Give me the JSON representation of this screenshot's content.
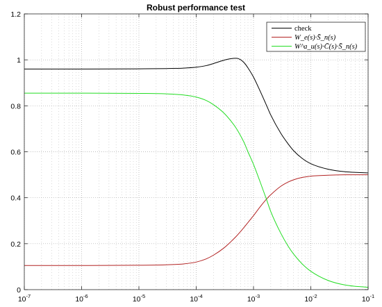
{
  "chart_data": {
    "type": "line",
    "title": "Robust performance test",
    "xscale": "log",
    "xlim": [
      1e-07,
      0.1
    ],
    "ylim": [
      0,
      1.2
    ],
    "grid": true,
    "legend_position": "top-right",
    "x_ticks": [
      {
        "base": "10",
        "exp": "-7",
        "value": 1e-07
      },
      {
        "base": "10",
        "exp": "-6",
        "value": 1e-06
      },
      {
        "base": "10",
        "exp": "-5",
        "value": 1e-05
      },
      {
        "base": "10",
        "exp": "-4",
        "value": 0.0001
      },
      {
        "base": "10",
        "exp": "-3",
        "value": 0.001
      },
      {
        "base": "10",
        "exp": "-2",
        "value": 0.01
      },
      {
        "base": "10",
        "exp": "-1",
        "value": 0.1
      }
    ],
    "y_ticks": [
      {
        "label": "0",
        "value": 0
      },
      {
        "label": "0.2",
        "value": 0.2
      },
      {
        "label": "0.4",
        "value": 0.4
      },
      {
        "label": "0.6",
        "value": 0.6
      },
      {
        "label": "0.8",
        "value": 0.8
      },
      {
        "label": "1",
        "value": 1.0
      },
      {
        "label": "1.2",
        "value": 1.2
      }
    ],
    "series": [
      {
        "name": "check",
        "color": "#000000",
        "x": [
          1e-07,
          1e-06,
          1e-05,
          3e-05,
          6e-05,
          0.0001,
          0.00015,
          0.0002,
          0.0003,
          0.0004,
          0.0005,
          0.0006,
          0.0007,
          0.0008,
          0.001,
          0.0013,
          0.0017,
          0.002,
          0.003,
          0.004,
          0.005,
          0.007,
          0.01,
          0.02,
          0.04,
          0.1
        ],
        "y": [
          0.96,
          0.96,
          0.961,
          0.962,
          0.964,
          0.968,
          0.975,
          0.984,
          0.998,
          1.005,
          1.007,
          1.0,
          0.985,
          0.965,
          0.925,
          0.865,
          0.8,
          0.76,
          0.68,
          0.635,
          0.605,
          0.572,
          0.548,
          0.524,
          0.513,
          0.508
        ]
      },
      {
        "name": "W_e(s)·S̄_n(s)",
        "color": "#b22222",
        "x": [
          1e-07,
          1e-06,
          1e-05,
          3e-05,
          6e-05,
          0.0001,
          0.00015,
          0.0002,
          0.0003,
          0.0004,
          0.0005,
          0.0006,
          0.0007,
          0.0008,
          0.001,
          0.0013,
          0.0017,
          0.002,
          0.003,
          0.004,
          0.005,
          0.007,
          0.01,
          0.02,
          0.04,
          0.1
        ],
        "y": [
          0.105,
          0.105,
          0.106,
          0.108,
          0.112,
          0.12,
          0.134,
          0.15,
          0.18,
          0.208,
          0.232,
          0.254,
          0.274,
          0.292,
          0.322,
          0.36,
          0.395,
          0.413,
          0.45,
          0.468,
          0.478,
          0.488,
          0.494,
          0.498,
          0.5,
          0.5
        ]
      },
      {
        "name": "W^a_u(s)·C̄(s)·S̄_n(s)",
        "color": "#22dd22",
        "x": [
          1e-07,
          1e-06,
          1e-05,
          3e-05,
          6e-05,
          0.0001,
          0.00015,
          0.0002,
          0.0003,
          0.0004,
          0.0005,
          0.0006,
          0.0007,
          0.0008,
          0.001,
          0.0013,
          0.0017,
          0.002,
          0.003,
          0.004,
          0.005,
          0.007,
          0.01,
          0.02,
          0.04,
          0.1
        ],
        "y": [
          0.855,
          0.855,
          0.854,
          0.852,
          0.847,
          0.838,
          0.823,
          0.805,
          0.77,
          0.735,
          0.702,
          0.668,
          0.635,
          0.6,
          0.545,
          0.47,
          0.39,
          0.34,
          0.245,
          0.19,
          0.155,
          0.113,
          0.08,
          0.04,
          0.02,
          0.01
        ]
      }
    ]
  }
}
